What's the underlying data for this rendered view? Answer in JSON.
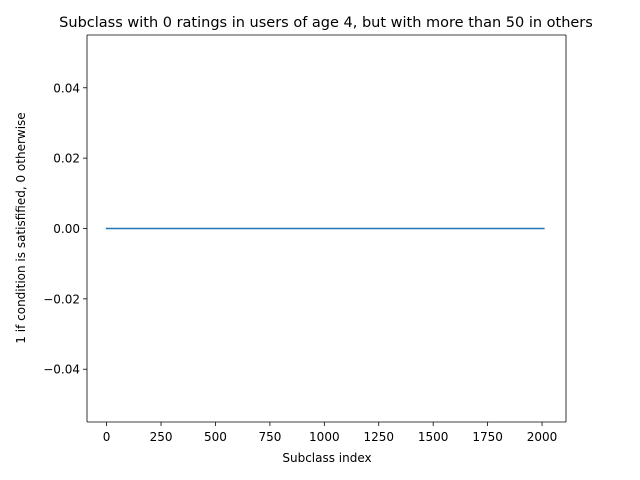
{
  "chart_data": {
    "type": "line",
    "title": "Subclass with 0 ratings in users of age 4, but with more than 50 in others",
    "xlabel": "Subclass index",
    "ylabel": "1 if condition is satisfified, 0 otherwise",
    "xlim": [
      -90,
      2110
    ],
    "ylim": [
      -0.055,
      0.055
    ],
    "xticks": [
      0,
      250,
      500,
      750,
      1000,
      1250,
      1500,
      1750,
      2000
    ],
    "xtick_labels": [
      "0",
      "250",
      "500",
      "750",
      "1000",
      "1250",
      "1500",
      "1750",
      "2000"
    ],
    "yticks": [
      0.04,
      0.02,
      0.0,
      -0.02,
      -0.04
    ],
    "ytick_labels": [
      "0.04",
      "0.02",
      "0.00",
      "−0.02",
      "−0.04"
    ],
    "grid": false,
    "legend": "none",
    "series": [
      {
        "color": "#1f77b4",
        "x": [
          0,
          2008
        ],
        "y": [
          0,
          0
        ]
      }
    ]
  }
}
